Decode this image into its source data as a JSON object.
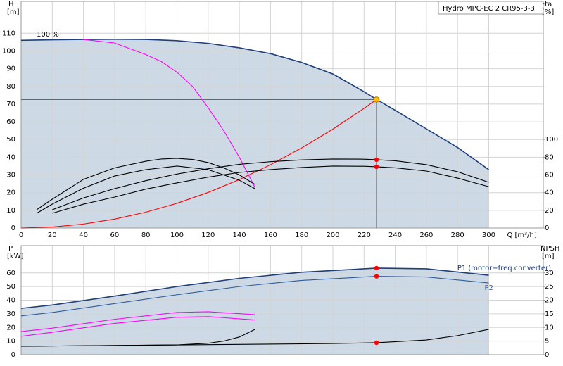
{
  "chart_data": [
    {
      "type": "line",
      "title": "Hydro MPC-EC 2 CR95-3-3",
      "y_axis_title": "H",
      "y_axis_unit": "[m]",
      "y2_axis_title": "eta",
      "y2_axis_unit": "[%]",
      "x_axis_label": "Q [m³/h]",
      "annotation": "100 %",
      "xlim": [
        0,
        335
      ],
      "xticks": [
        0,
        20,
        40,
        60,
        80,
        100,
        120,
        140,
        160,
        180,
        200,
        220,
        240,
        260,
        280,
        300
      ],
      "ylim": [
        0,
        128
      ],
      "yticks": [
        0,
        10,
        20,
        30,
        40,
        50,
        60,
        70,
        80,
        90,
        100,
        110
      ],
      "y2lim": [
        0,
        256
      ],
      "y2ticks": [
        0,
        20,
        40,
        60,
        80,
        100
      ],
      "grid": true,
      "area_color": "#cdd9e5",
      "marker_color": "#ff0000",
      "operating_point": {
        "x": 228,
        "y": 72.6,
        "color": "#ffc000"
      },
      "series": [
        {
          "color": "#1f3f7a",
          "area": true,
          "x": [
            0,
            20,
            40,
            60,
            80,
            100,
            120,
            140,
            160,
            180,
            200,
            220,
            228,
            240,
            260,
            280,
            300
          ],
          "values": [
            106,
            106.3,
            106.5,
            106.6,
            106.5,
            105.8,
            104.3,
            101.8,
            98.5,
            93.5,
            87,
            77,
            72.6,
            66.5,
            56,
            45.5,
            33
          ]
        },
        {
          "color": "#ff00ff",
          "x": [
            40,
            60,
            80,
            90,
            100,
            110,
            120,
            130,
            140,
            150
          ],
          "values": [
            106.5,
            104.5,
            98,
            94,
            88,
            80,
            68,
            55,
            40,
            23
          ]
        },
        {
          "color": "#ff0000",
          "x": [
            0,
            20,
            40,
            60,
            80,
            100,
            120,
            140,
            160,
            180,
            200,
            220,
            228
          ],
          "values": [
            0,
            0.56,
            2.23,
            5.03,
            8.94,
            13.97,
            20.1,
            27.4,
            35.75,
            45.25,
            55.86,
            67.6,
            72.6
          ]
        },
        {
          "color": "#000000",
          "axis": "y2",
          "marker": true,
          "x": [
            20,
            40,
            60,
            80,
            100,
            120,
            140,
            160,
            180,
            200,
            220,
            228,
            240,
            260,
            280,
            300
          ],
          "values": [
            20.7,
            34,
            44.5,
            53.5,
            61,
            67,
            72,
            75,
            77,
            78,
            77.8,
            77.2,
            76,
            71.6,
            63.6,
            51.7
          ]
        },
        {
          "color": "#000000",
          "axis": "y2",
          "marker": true,
          "x": [
            20,
            40,
            60,
            80,
            100,
            120,
            140,
            160,
            180,
            200,
            220,
            228,
            240,
            260,
            280,
            300
          ],
          "values": [
            16.7,
            27,
            35,
            44,
            51,
            57.5,
            62.8,
            66,
            68.4,
            70,
            69.8,
            69.2,
            68,
            64.4,
            56.4,
            46.7
          ]
        },
        {
          "color": "#000000",
          "axis": "y2",
          "x": [
            10,
            20,
            40,
            60,
            80,
            90,
            100,
            110,
            120,
            130,
            140,
            150
          ],
          "values": [
            20.7,
            32.6,
            55,
            68,
            75.5,
            78,
            78.7,
            77.5,
            74,
            68,
            60,
            49.3
          ]
        },
        {
          "color": "#000000",
          "axis": "y2",
          "x": [
            10,
            20,
            40,
            60,
            80,
            100,
            120,
            140,
            150
          ],
          "values": [
            16.7,
            27,
            45,
            58.8,
            66,
            70,
            66,
            54,
            44.5
          ]
        }
      ]
    },
    {
      "type": "line",
      "y_axis_title": "P",
      "y_axis_unit": "[kW]",
      "y2_axis_title": "NPSH",
      "y2_axis_unit": "[m]",
      "xlim": [
        0,
        335
      ],
      "xticks": [
        0,
        20,
        40,
        60,
        80,
        100,
        120,
        140,
        160,
        180,
        200,
        220,
        240,
        260,
        280,
        300
      ],
      "ylim": [
        0,
        80
      ],
      "yticks": [
        0,
        10,
        20,
        30,
        40,
        50,
        60
      ],
      "y2lim": [
        0,
        40
      ],
      "y2ticks": [
        0,
        5,
        10,
        15,
        20,
        25,
        30
      ],
      "grid": true,
      "area_color": "#cdd9e5",
      "marker_color": "#ff0000",
      "operating_x": 228,
      "series": [
        {
          "name": "P1 (motor+freq.converter)",
          "color": "#1f3f7a",
          "area": true,
          "marker": true,
          "x": [
            0,
            20,
            60,
            100,
            140,
            180,
            228,
            260,
            300
          ],
          "values": [
            34,
            36.5,
            43,
            50,
            56,
            60.5,
            63.5,
            63,
            58.3
          ]
        },
        {
          "name": "P2",
          "color": "#2e5c9e",
          "marker": true,
          "x": [
            0,
            20,
            60,
            100,
            140,
            180,
            228,
            260,
            300
          ],
          "values": [
            28.5,
            31,
            37.5,
            44,
            50,
            54.5,
            57.5,
            57,
            52.6
          ]
        },
        {
          "color": "#ff00ff",
          "x": [
            0,
            20,
            60,
            100,
            120,
            150
          ],
          "values": [
            17,
            19.5,
            26,
            31,
            31.5,
            29.4
          ]
        },
        {
          "color": "#ff00ff",
          "x": [
            0,
            20,
            60,
            100,
            120,
            150
          ],
          "values": [
            13.5,
            16.5,
            23,
            27.5,
            28,
            25.5
          ]
        },
        {
          "color": "#000000",
          "axis": "y2",
          "marker": true,
          "x": [
            0,
            100,
            200,
            228,
            260,
            280,
            300
          ],
          "values": [
            3.1,
            3.6,
            4.1,
            4.4,
            5.4,
            7,
            9.3
          ]
        },
        {
          "color": "#000000",
          "axis": "y2",
          "x": [
            0,
            100,
            120,
            130,
            140,
            150
          ],
          "values": [
            3.1,
            3.6,
            4.2,
            5,
            6.5,
            9.3
          ]
        }
      ]
    }
  ]
}
